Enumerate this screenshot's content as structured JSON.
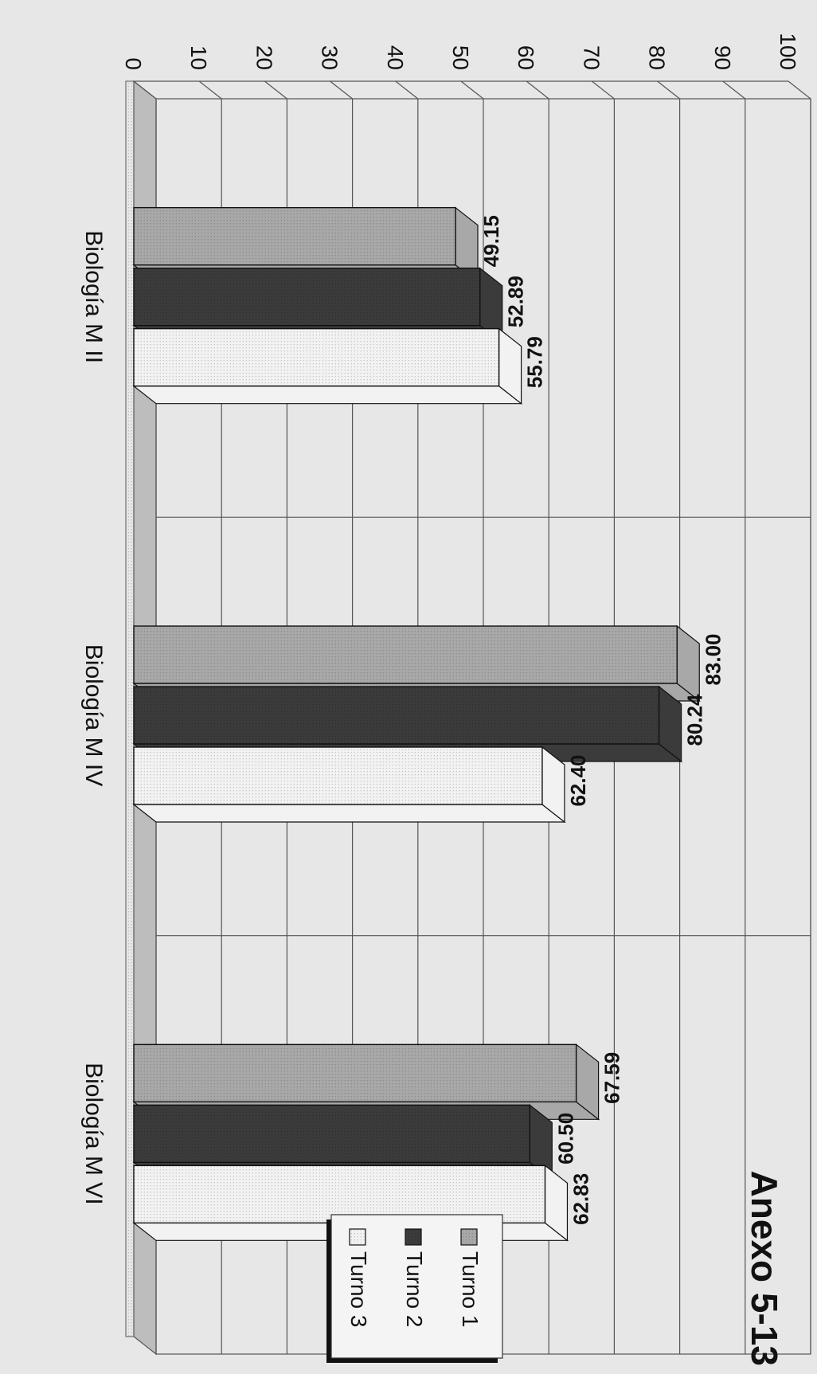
{
  "chart_data": {
    "type": "bar",
    "title": "Anexo 5-13",
    "categories": [
      "Biología M II",
      "Biología M IV",
      "Biología M VI"
    ],
    "series": [
      {
        "name": "Turno 1",
        "values": [
          49.15,
          83.0,
          67.59
        ]
      },
      {
        "name": "Turno 2",
        "values": [
          52.89,
          80.24,
          60.5
        ]
      },
      {
        "name": "Turno 3",
        "values": [
          55.79,
          62.4,
          62.83
        ]
      }
    ],
    "value_labels": [
      [
        "49.15",
        "83.00",
        "67.59"
      ],
      [
        "52.89",
        "80.24",
        "60.50"
      ],
      [
        "55.79",
        "62.40",
        "62.83"
      ]
    ],
    "yticks": [
      "0",
      "10",
      "20",
      "30",
      "40",
      "50",
      "60",
      "70",
      "80",
      "90",
      "100"
    ],
    "ylim": [
      0,
      100
    ],
    "grid": true,
    "legend_position": "top-right",
    "orientation": "page rotated 90 degrees clockwise",
    "colors": {
      "Turno 1": "#a8a8a8",
      "Turno 2": "#3b3b3b",
      "Turno 3": "#f2f2f2",
      "background": "#e7e7e7",
      "grid": "#555555"
    }
  }
}
